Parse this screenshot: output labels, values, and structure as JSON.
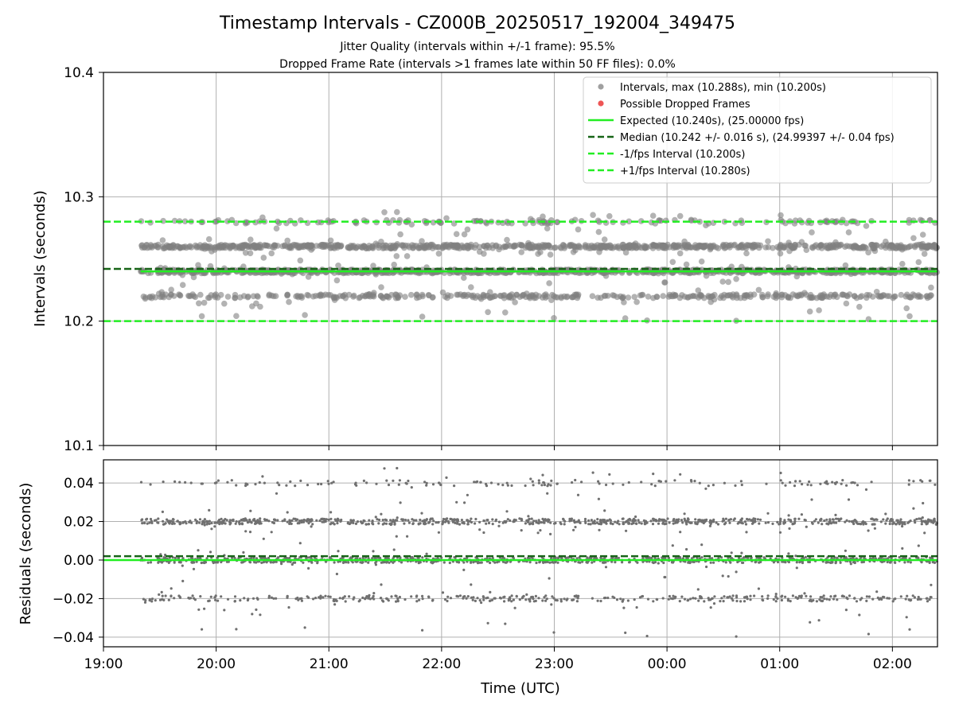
{
  "chart_data": [
    {
      "type": "scatter",
      "title": "Timestamp Intervals - CZ000B_20250517_192004_349475",
      "subtitle_lines": [
        "Jitter Quality (intervals within +/-1 frame): 95.5%",
        "Dropped Frame Rate (intervals >1 frames late within 50 FF files): 0.0%"
      ],
      "ylabel": "Intervals (seconds)",
      "xlabel": "",
      "ylim": [
        10.1,
        10.4
      ],
      "y_ticks": [
        "10.1",
        "10.2",
        "10.3",
        "10.4"
      ],
      "x_range_hours": [
        19.0,
        26.4
      ],
      "scatter_x_range_hours": [
        19.33,
        26.4
      ],
      "x_tick_labels": [
        "19:00",
        "20:00",
        "21:00",
        "22:00",
        "23:00",
        "00:00",
        "01:00",
        "02:00"
      ],
      "grid": true,
      "legend_placement": "top-right",
      "point_color": "#808080",
      "dropped_color": "#ff5a5a",
      "levels": [
        {
          "value": 10.22,
          "weight": 0.16
        },
        {
          "value": 10.24,
          "weight": 0.4
        },
        {
          "value": 10.26,
          "weight": 0.33
        },
        {
          "value": 10.28,
          "weight": 0.06
        }
      ],
      "legend": [
        {
          "label": "Intervals, max (10.288s), min (10.200s)",
          "style": "dot",
          "color": "#a0a0a0"
        },
        {
          "label": "Possible Dropped Frames",
          "style": "dot",
          "color": "#ee5555"
        },
        {
          "label": "Expected (10.240s), (25.00000 fps)",
          "style": "solid",
          "color": "#22ee22"
        },
        {
          "label": "Median (10.242 +/- 0.016 s), (24.99397 +/- 0.04 fps)",
          "style": "dashed",
          "color": "#176417"
        },
        {
          "label": "-1/fps Interval (10.200s)",
          "style": "dashed",
          "color": "#22ee22"
        },
        {
          "label": "+1/fps Interval (10.280s)",
          "style": "dashed",
          "color": "#22ee22"
        }
      ],
      "lines": [
        {
          "name": "Expected",
          "y": 10.24,
          "style": "solid",
          "color": "#22ee22",
          "x_start_hours": 19.33
        },
        {
          "name": "Median",
          "y": 10.242,
          "style": "dashed",
          "color": "#176417"
        },
        {
          "name": "-1/fps Interval",
          "y": 10.2,
          "style": "dashed",
          "color": "#22ee22"
        },
        {
          "name": "+1/fps Interval",
          "y": 10.28,
          "style": "dashed",
          "color": "#22ee22"
        }
      ]
    },
    {
      "type": "scatter",
      "ylabel": "Residuals (seconds)",
      "xlabel": "Time (UTC)",
      "ylim": [
        -0.045,
        0.052
      ],
      "y_ticks": [
        "−0.04",
        "−0.02",
        "0.00",
        "0.02",
        "0.04"
      ],
      "y_tick_values": [
        -0.04,
        -0.02,
        0.0,
        0.02,
        0.04
      ],
      "x_range_hours": [
        19.0,
        26.4
      ],
      "x_tick_labels": [
        "19:00",
        "20:00",
        "21:00",
        "22:00",
        "23:00",
        "00:00",
        "01:00",
        "02:00"
      ],
      "grid": true,
      "point_color": "#707070",
      "levels": [
        {
          "value": -0.02,
          "weight": 0.16
        },
        {
          "value": 0.0,
          "weight": 0.4
        },
        {
          "value": 0.02,
          "weight": 0.33
        },
        {
          "value": 0.04,
          "weight": 0.06
        }
      ],
      "lines": [
        {
          "name": "Zero residual",
          "y": 0.0,
          "style": "solid",
          "color": "#22ee22"
        },
        {
          "name": "Median residual",
          "y": 0.002,
          "style": "dashed",
          "color": "#176417"
        }
      ]
    }
  ]
}
